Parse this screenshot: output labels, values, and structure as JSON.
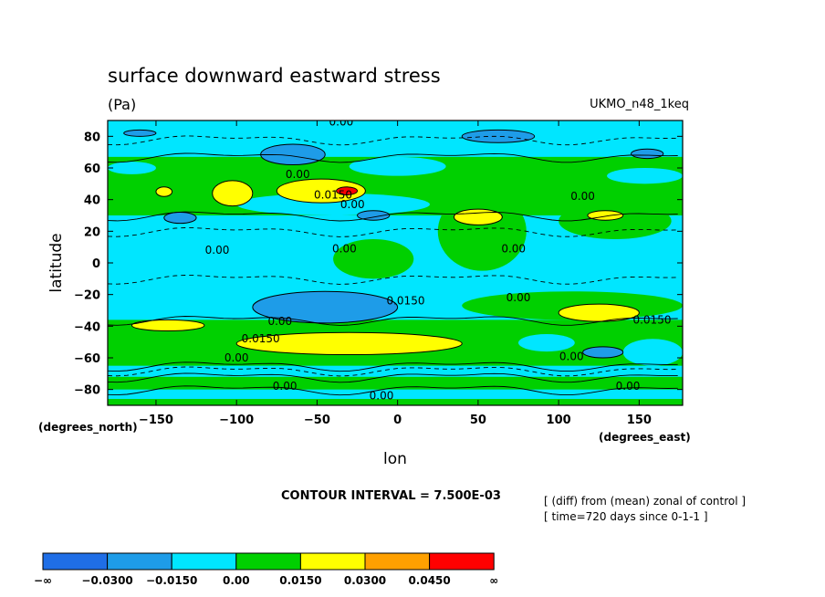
{
  "title": "surface downward eastward stress",
  "units": "(Pa)",
  "model": "UKMO_n48_1keq",
  "ylabel": "latitude",
  "xlabel": "lon",
  "ylabel_units": "(degrees_north)",
  "xlabel_units": "(degrees_east)",
  "contour_interval": "CONTOUR INTERVAL = 7.500E-03",
  "notes": [
    "[ (diff) from (mean) zonal of control ]",
    "[ time=720 days since 0-1-1 ]"
  ],
  "chart_data": {
    "type": "heatmap",
    "title": "surface downward eastward stress",
    "subtitle": "(Pa)",
    "xlabel": "lon",
    "ylabel": "latitude",
    "xlim": [
      -180,
      177
    ],
    "ylim": [
      -90,
      90
    ],
    "x_ticks": [
      -150,
      -100,
      -50,
      0,
      50,
      100,
      150
    ],
    "y_ticks": [
      80,
      60,
      40,
      20,
      0,
      -20,
      -40,
      -60,
      -80
    ],
    "x_tick_labels": [
      "−150",
      "−100",
      "−50",
      "0",
      "50",
      "100",
      "150"
    ],
    "y_tick_labels": [
      "80",
      "60",
      "40",
      "20",
      "0",
      "−20",
      "−40",
      "−60",
      "−80"
    ],
    "contour_levels": [
      -0.03,
      -0.015,
      0.0,
      0.015,
      0.03,
      0.045
    ],
    "colorbar": {
      "labels": [
        "−∞",
        "−0.0300",
        "−0.0150",
        "0.00",
        "0.0150",
        "0.0300",
        "0.0450",
        "∞"
      ],
      "colors": [
        "#1f6ee6",
        "#1e9ce8",
        "#00e6ff",
        "#00d000",
        "#ffff00",
        "#ffa000",
        "#ff0000"
      ]
    },
    "contour_labels": [
      {
        "text": "0.00",
        "lon": -35,
        "lat": 89
      },
      {
        "text": "0.00",
        "lon": -62,
        "lat": 56
      },
      {
        "text": "0.0150",
        "lon": -40,
        "lat": 43
      },
      {
        "text": "0.00",
        "lon": -28,
        "lat": 37
      },
      {
        "text": "0.00",
        "lon": 115,
        "lat": 42
      },
      {
        "text": "0.00",
        "lon": -112,
        "lat": 8
      },
      {
        "text": "0.00",
        "lon": -33,
        "lat": 9
      },
      {
        "text": "0.00",
        "lon": 72,
        "lat": 9
      },
      {
        "text": "0.0150",
        "lon": 5,
        "lat": -24
      },
      {
        "text": "0.00",
        "lon": 75,
        "lat": -22
      },
      {
        "text": "0.00",
        "lon": -73,
        "lat": -37
      },
      {
        "text": "0.0150",
        "lon": 158,
        "lat": -36
      },
      {
        "text": "0.0150",
        "lon": -85,
        "lat": -48
      },
      {
        "text": "0.00",
        "lon": -100,
        "lat": -60
      },
      {
        "text": "0.00",
        "lon": 108,
        "lat": -59
      },
      {
        "text": "0.00",
        "lon": -70,
        "lat": -78
      },
      {
        "text": "0.00",
        "lon": 143,
        "lat": -78
      },
      {
        "text": "0.00",
        "lon": -10,
        "lat": -84
      }
    ],
    "regions": [
      {
        "level": "0.0150",
        "lon": [
          -150,
          -140
        ],
        "lat": [
          48,
          42
        ]
      },
      {
        "level": "0.0150",
        "lon": [
          -115,
          -90
        ],
        "lat": [
          52,
          36
        ]
      },
      {
        "level": "0.0150",
        "lon": [
          -75,
          -20
        ],
        "lat": [
          53,
          38
        ]
      },
      {
        "level": "0.0450",
        "lon": [
          -38,
          -25
        ],
        "lat": [
          48,
          43
        ]
      },
      {
        "level": "0.0150",
        "lon": [
          35,
          65
        ],
        "lat": [
          34,
          24
        ]
      },
      {
        "level": "0.0150",
        "lon": [
          118,
          140
        ],
        "lat": [
          33,
          27
        ]
      },
      {
        "level": "0.0150",
        "lon": [
          -165,
          -120
        ],
        "lat": [
          -36,
          -43
        ]
      },
      {
        "level": "0.0150",
        "lon": [
          -100,
          40
        ],
        "lat": [
          -44,
          -58
        ]
      },
      {
        "level": "0.0150",
        "lon": [
          100,
          150
        ],
        "lat": [
          -26,
          -37
        ]
      },
      {
        "level": "−0.0300",
        "lon": [
          -90,
          0
        ],
        "lat": [
          -18,
          -38
        ]
      },
      {
        "level": "−0.0300",
        "lon": [
          -85,
          -45
        ],
        "lat": [
          75,
          62
        ]
      },
      {
        "level": "−0.0300",
        "lon": [
          -145,
          -125
        ],
        "lat": [
          32,
          25
        ]
      },
      {
        "level": "−0.0300",
        "lon": [
          -25,
          -5
        ],
        "lat": [
          33,
          27
        ]
      },
      {
        "level": "−0.0300",
        "lon": [
          40,
          85
        ],
        "lat": [
          84,
          76
        ]
      },
      {
        "level": "−0.0300",
        "lon": [
          145,
          165
        ],
        "lat": [
          72,
          66
        ]
      },
      {
        "level": "−0.0300",
        "lon": [
          115,
          140
        ],
        "lat": [
          -53,
          -60
        ]
      },
      {
        "level": "−0.0300",
        "lon": [
          -170,
          -150
        ],
        "lat": [
          84,
          80
        ]
      }
    ]
  }
}
